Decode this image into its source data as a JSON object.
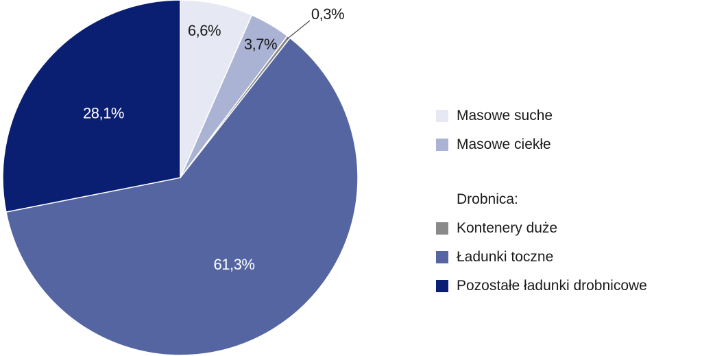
{
  "chart_data": {
    "type": "pie",
    "slices": [
      {
        "label": "Masowe suche",
        "value": 6.6,
        "display": "6,6%",
        "color": "#e6e8f3",
        "text_color": "#1a1a1a"
      },
      {
        "label": "Masowe ciekłe",
        "value": 3.7,
        "display": "3,7%",
        "color": "#aab3d4",
        "text_color": "#1a1a1a"
      },
      {
        "label": "Kontenery duże",
        "value": 0.3,
        "display": "0,3%",
        "color": "#8a8a8a",
        "text_color": "#1a1a1a"
      },
      {
        "label": "Ładunki toczne",
        "value": 61.3,
        "display": "61,3%",
        "color": "#5465a1",
        "text_color": "#ffffff"
      },
      {
        "label": "Pozostałe ładunki drobnicowe",
        "value": 28.1,
        "display": "28,1%",
        "color": "#0b1f72",
        "text_color": "#ffffff"
      }
    ],
    "start": "12 o'clock",
    "direction": "clockwise"
  },
  "legend": {
    "group_heading": "Drobnica:",
    "items": [
      {
        "label": "Masowe suche",
        "color": "#e6e8f3"
      },
      {
        "label": "Masowe ciekłe",
        "color": "#aab3d4"
      },
      {
        "label": "Kontenery duże",
        "color": "#8a8a8a"
      },
      {
        "label": "Ładunki toczne",
        "color": "#5465a1"
      },
      {
        "label": "Pozostałe ładunki drobnicowe",
        "color": "#0b1f72"
      }
    ]
  }
}
